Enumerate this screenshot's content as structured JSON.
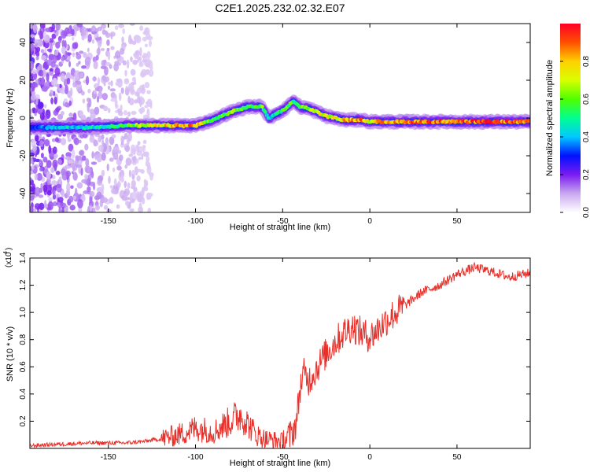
{
  "title": "C2E1.2025.232.02.32.E07",
  "chart_data": [
    {
      "type": "heatmap",
      "xlabel": "Height of straight line (km)",
      "ylabel": "Frequency (Hz)",
      "xlim": [
        -195,
        92
      ],
      "ylim": [
        -50,
        50
      ],
      "xticks": [
        -150,
        -100,
        -50,
        0,
        50
      ],
      "yticks": [
        -40,
        -20,
        0,
        20,
        40
      ],
      "colorbar": {
        "label": "Normalized spectral amplitude",
        "range": [
          0,
          1
        ],
        "ticks": [
          "0.0",
          "0.2",
          "0.4",
          "0.6",
          "0.8"
        ],
        "colors": [
          "#ffffff",
          "#c9a8f0",
          "#7a1cf0",
          "#0010ff",
          "#00c8ff",
          "#00ff90",
          "#50ff00",
          "#d8ff00",
          "#ffd000",
          "#ff5000",
          "#ff0028"
        ]
      },
      "ridge": {
        "x": [
          -195,
          -180,
          -160,
          -140,
          -120,
          -100,
          -90,
          -80,
          -70,
          -62,
          -58,
          -52,
          -47,
          -44,
          -40,
          -35,
          -30,
          -25,
          -20,
          -15,
          -10,
          -5,
          0,
          10,
          30,
          60,
          92
        ],
        "frequency": [
          -5,
          -5,
          -5,
          -4,
          -4,
          -4,
          -1,
          3,
          6,
          6,
          0,
          3,
          6,
          9,
          6,
          5,
          3,
          1,
          0,
          -1,
          -1,
          -1,
          -2,
          -2,
          -2,
          -2,
          -2
        ],
        "amplitude": [
          0.3,
          0.4,
          0.45,
          0.55,
          0.75,
          0.85,
          0.5,
          0.6,
          0.55,
          0.6,
          0.4,
          0.5,
          0.6,
          0.55,
          0.6,
          0.65,
          0.7,
          0.7,
          0.75,
          0.8,
          0.85,
          0.85,
          0.75,
          0.8,
          0.9,
          0.9,
          0.9
        ]
      },
      "noise_region": [
        -195,
        -125
      ]
    },
    {
      "type": "line",
      "xlabel": "Height of straight line (km)",
      "ylabel": "SNR (10 * v/v)",
      "yscale_label": "(x10",
      "yscale_exp": "4",
      "xlim": [
        -195,
        92
      ],
      "ylim": [
        0,
        1.4
      ],
      "xticks": [
        -150,
        -100,
        -50,
        0,
        50
      ],
      "yticks": [
        0.2,
        0.4,
        0.6,
        0.8,
        1.0,
        1.2,
        1.4
      ],
      "series": [
        {
          "color": "#e8302a",
          "x": [
            -195,
            -180,
            -160,
            -140,
            -130,
            -120,
            -110,
            -105,
            -100,
            -95,
            -90,
            -85,
            -80,
            -75,
            -72,
            -70,
            -65,
            -60,
            -55,
            -50,
            -45,
            -42,
            -40,
            -38,
            -35,
            -30,
            -25,
            -20,
            -15,
            -10,
            -5,
            0,
            5,
            10,
            15,
            20,
            25,
            30,
            40,
            50,
            60,
            70,
            80,
            92
          ],
          "y": [
            0.02,
            0.03,
            0.04,
            0.04,
            0.05,
            0.07,
            0.1,
            0.12,
            0.15,
            0.14,
            0.12,
            0.16,
            0.2,
            0.25,
            0.22,
            0.18,
            0.1,
            0.07,
            0.06,
            0.05,
            0.1,
            0.2,
            0.45,
            0.55,
            0.5,
            0.6,
            0.7,
            0.78,
            0.85,
            0.9,
            0.85,
            0.82,
            0.88,
            0.95,
            1.0,
            1.05,
            1.1,
            1.15,
            1.2,
            1.28,
            1.33,
            1.3,
            1.26,
            1.29
          ]
        }
      ]
    }
  ]
}
